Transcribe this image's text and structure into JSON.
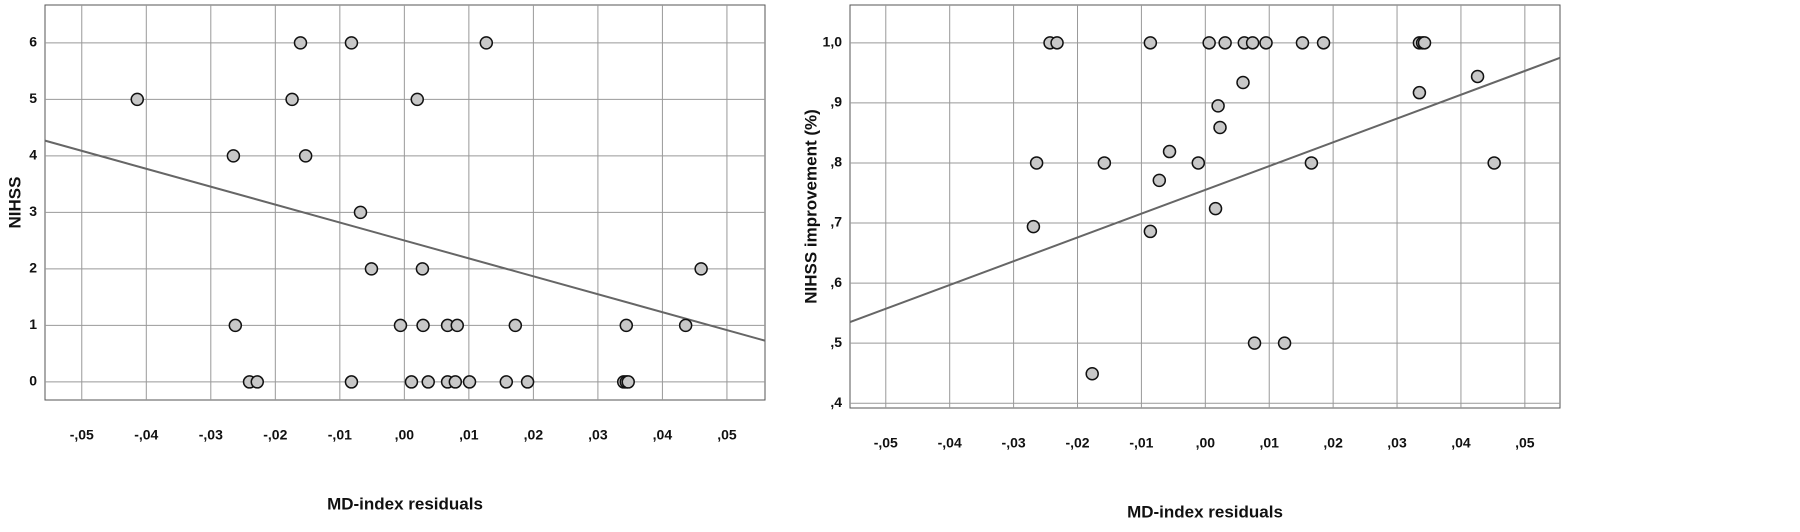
{
  "chart_data": [
    {
      "type": "scatter",
      "x_label": "MD-index residuals",
      "y_label": "NIHSS",
      "grid": true,
      "color": "#c8c8c8",
      "xlim": [
        -0.0557,
        0.0559
      ],
      "ylim": [
        -0.32,
        6.67
      ],
      "xticks": [
        {
          "value": -0.05,
          "label": "-,05"
        },
        {
          "value": -0.04,
          "label": "-,04"
        },
        {
          "value": -0.03,
          "label": "-,03"
        },
        {
          "value": -0.02,
          "label": "-,02"
        },
        {
          "value": -0.01,
          "label": "-,01"
        },
        {
          "value": 0,
          "label": ",00"
        },
        {
          "value": 0.01,
          "label": ",01"
        },
        {
          "value": 0.02,
          "label": ",02"
        },
        {
          "value": 0.03,
          "label": ",03"
        },
        {
          "value": 0.04,
          "label": ",04"
        },
        {
          "value": 0.05,
          "label": ",05"
        }
      ],
      "yticks": [
        0,
        1,
        2,
        3,
        4,
        5,
        6
      ],
      "x": [
        -0.0414,
        -0.0161,
        -0.0082,
        0.0127,
        -0.0174,
        0.002,
        -0.0265,
        -0.0153,
        -0.0068,
        -0.0051,
        0.0028,
        0.046,
        -0.0262,
        -0.0006,
        0.0029,
        0.0067,
        0.0082,
        0.0172,
        0.0344,
        0.0436,
        -0.024,
        -0.0228,
        -0.0082,
        0.0011,
        0.0037,
        0.0067,
        0.0079,
        0.0101,
        0.0158,
        0.0191,
        0.034,
        0.0344,
        0.0347
      ],
      "values": [
        5,
        6,
        6,
        6,
        5,
        5,
        4,
        4,
        3,
        2,
        2,
        2,
        1,
        1,
        1,
        1,
        1,
        1,
        1,
        1,
        0,
        0,
        0,
        0,
        0,
        0,
        0,
        0,
        0,
        0,
        0,
        0,
        0
      ],
      "fit": {
        "color": "#666666",
        "x": [
          -0.0557,
          0.0559
        ],
        "values": [
          4.27,
          0.73
        ]
      }
    },
    {
      "type": "scatter",
      "x_label": "MD-index residuals",
      "y_label": "NIHSS improvement (%)",
      "grid": true,
      "color": "#c8c8c8",
      "xlim": [
        -0.0556,
        0.0555
      ],
      "ylim": [
        0.392,
        1.063
      ],
      "xticks": [
        {
          "value": -0.05,
          "label": "-,05"
        },
        {
          "value": -0.04,
          "label": "-,04"
        },
        {
          "value": -0.03,
          "label": "-,03"
        },
        {
          "value": -0.02,
          "label": "-,02"
        },
        {
          "value": -0.01,
          "label": "-,01"
        },
        {
          "value": 0,
          "label": ",00"
        },
        {
          "value": 0.01,
          "label": ",01"
        },
        {
          "value": 0.02,
          "label": ",02"
        },
        {
          "value": 0.03,
          "label": ",03"
        },
        {
          "value": 0.04,
          "label": ",04"
        },
        {
          "value": 0.05,
          "label": ",05"
        }
      ],
      "yticks": [
        {
          "value": 0.4,
          "label": ",4"
        },
        {
          "value": 0.5,
          "label": ",5"
        },
        {
          "value": 0.6,
          "label": ",6"
        },
        {
          "value": 0.7,
          "label": ",7"
        },
        {
          "value": 0.8,
          "label": ",8"
        },
        {
          "value": 0.9,
          "label": ",9"
        },
        {
          "value": 1,
          "label": "1,0"
        }
      ],
      "x": [
        -0.0243,
        -0.0232,
        -0.0086,
        0.0006,
        0.0031,
        0.0061,
        0.0074,
        0.0095,
        0.0152,
        0.0185,
        0.0335,
        0.034,
        0.0343,
        0.0426,
        0.0059,
        0.002,
        0.0335,
        0.0023,
        -0.0056,
        -0.0264,
        -0.0158,
        -0.0011,
        0.0166,
        0.0452,
        -0.0072,
        0.0016,
        -0.0269,
        -0.0086,
        0.0077,
        0.0124,
        -0.0177
      ],
      "values": [
        1,
        1,
        1,
        1,
        1,
        1,
        1,
        1,
        1,
        1,
        1,
        1,
        1,
        0.944,
        0.934,
        0.895,
        0.917,
        0.859,
        0.819,
        0.8,
        0.8,
        0.8,
        0.8,
        0.8,
        0.771,
        0.724,
        0.694,
        0.686,
        0.5,
        0.5,
        0.449
      ],
      "fit": {
        "color": "#666666",
        "x": [
          -0.0556,
          0.0555
        ],
        "values": [
          0.535,
          0.975
        ]
      }
    }
  ]
}
